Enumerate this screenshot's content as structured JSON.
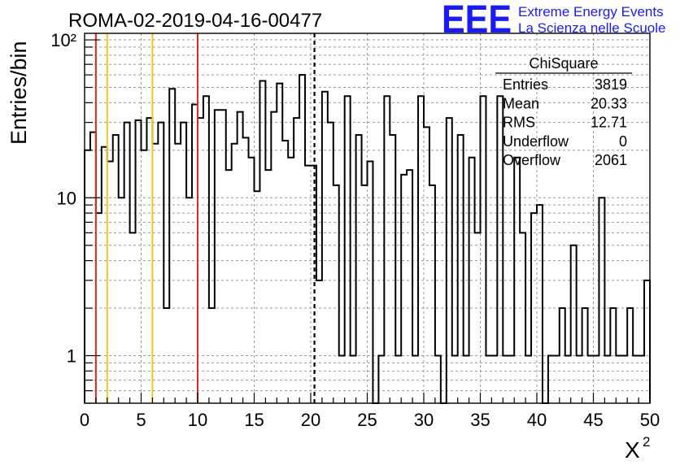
{
  "title": "ROMA-02-2019-04-16-00477",
  "logo": {
    "mark": "EEE",
    "line1": "Extreme Energy Events",
    "line2": "La Scienza nelle Scuole",
    "color": "#1a1aff"
  },
  "stats": {
    "name": "ChiSquare",
    "rows": [
      {
        "label": "Entries",
        "value": "3819"
      },
      {
        "label": "Mean",
        "value": "20.33"
      },
      {
        "label": "RMS",
        "value": "12.71"
      },
      {
        "label": "Underflow",
        "value": "0"
      },
      {
        "label": "Overflow",
        "value": "2061"
      }
    ]
  },
  "chart_data": {
    "type": "histogram",
    "title": "ROMA-02-2019-04-16-00477",
    "xlabel": "X²",
    "ylabel": "Entries/bin",
    "xlim": [
      0,
      50
    ],
    "ylim": [
      0.5,
      110
    ],
    "yscale": "log",
    "grid": true,
    "bin_width": 0.5,
    "x_ticks": [
      0,
      5,
      10,
      15,
      20,
      25,
      30,
      35,
      40,
      45,
      50
    ],
    "y_ticks": [
      {
        "value": 1,
        "label": "1"
      },
      {
        "value": 10,
        "label": "10"
      },
      {
        "value": 100,
        "label": "10²"
      }
    ],
    "values": [
      20,
      26,
      8,
      21,
      17,
      25,
      10,
      30,
      6,
      31,
      20,
      32,
      22,
      30,
      2,
      49,
      22,
      30,
      10,
      39,
      32,
      44,
      2,
      36,
      36,
      15,
      22,
      35,
      24,
      18,
      11,
      55,
      15,
      35,
      53,
      23,
      18,
      32,
      60,
      16,
      16,
      3,
      47,
      30,
      12,
      1,
      44,
      1,
      25,
      12,
      17,
      0.5,
      1,
      44,
      25,
      1,
      14,
      15,
      1,
      44,
      28,
      12,
      1,
      0.5,
      32,
      1,
      25,
      1,
      18,
      6,
      44,
      1,
      1,
      44,
      1,
      1,
      18,
      6,
      1,
      8,
      9,
      0.5,
      1,
      1,
      2,
      1,
      5,
      1,
      2,
      1,
      1,
      10,
      1,
      2,
      1,
      1,
      2,
      1,
      1,
      3
    ],
    "vlines": [
      {
        "x": 1,
        "color": "#e8281e",
        "style": "solid"
      },
      {
        "x": 2,
        "color": "#f5c518",
        "style": "solid"
      },
      {
        "x": 6,
        "color": "#f5c518",
        "style": "solid"
      },
      {
        "x": 10,
        "color": "#e8281e",
        "style": "solid"
      },
      {
        "x": 20.33,
        "color": "#000000",
        "style": "dashed"
      }
    ]
  }
}
